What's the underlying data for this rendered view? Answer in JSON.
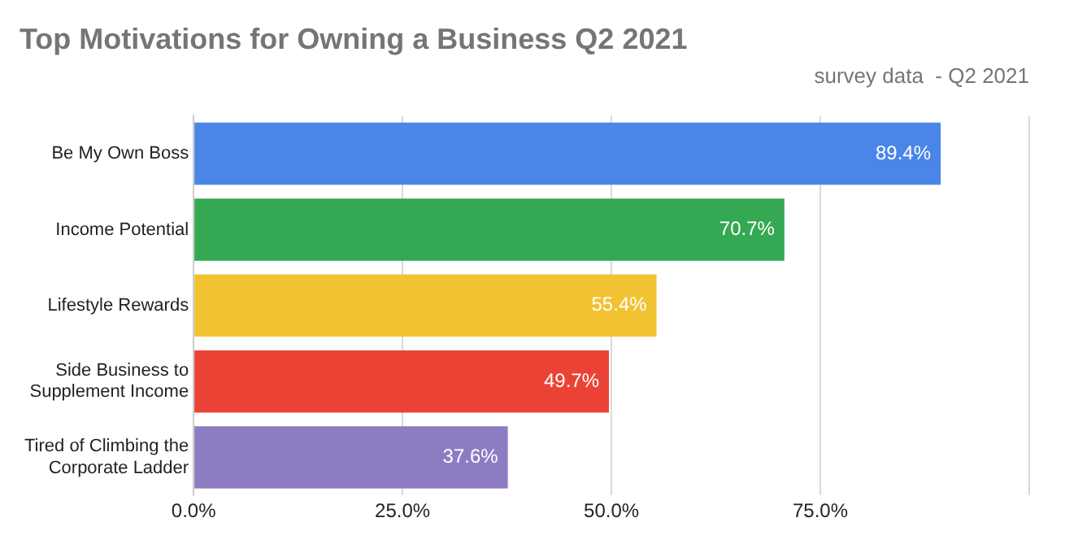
{
  "chart_data": {
    "type": "bar",
    "orientation": "horizontal",
    "title": "Top Motivations for Owning a Business Q2 2021",
    "subtitle": "survey data  - Q2 2021",
    "categories": [
      "Be My Own Boss",
      "Income Potential",
      "Lifestyle Rewards",
      "Side Business to Supplement Income",
      "Tired of Climbing the Corporate Ladder"
    ],
    "values": [
      89.4,
      70.7,
      55.4,
      49.7,
      37.6
    ],
    "colors": [
      "#4a86e8",
      "#34a853",
      "#f1c232",
      "#ea4335",
      "#8e7cc3"
    ],
    "value_labels": [
      "89.4%",
      "70.7%",
      "55.4%",
      "49.7%",
      "37.6%"
    ],
    "xlim": [
      0,
      100
    ],
    "xticks": [
      {
        "value": 0,
        "label": "0.0%"
      },
      {
        "value": 25,
        "label": "25.0%"
      },
      {
        "value": 50,
        "label": "50.0%"
      },
      {
        "value": 75,
        "label": "75.0%"
      },
      {
        "value": 100,
        "label": null
      }
    ],
    "grid": "x",
    "legend": false
  }
}
